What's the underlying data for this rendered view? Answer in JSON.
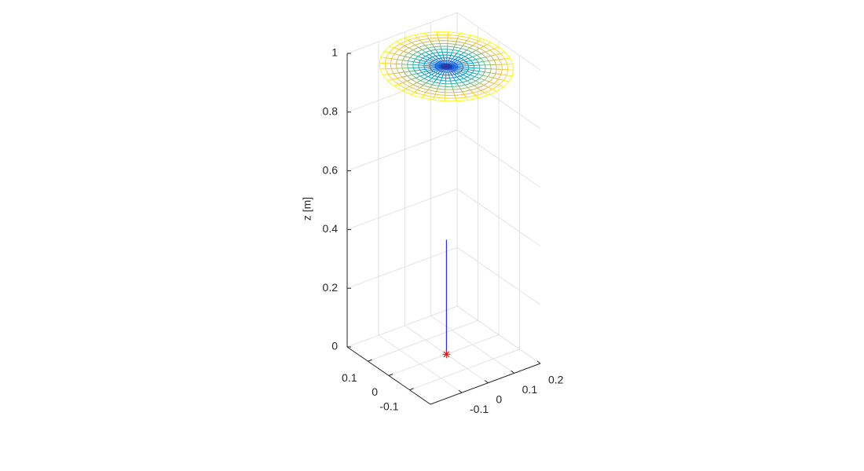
{
  "chart_data": {
    "type": "surface3d",
    "zlabel": "z [m]",
    "xlim": [
      -0.2,
      0.2
    ],
    "ylim": [
      -0.22,
      0.2
    ],
    "zlim": [
      0,
      1
    ],
    "xticks": [
      -0.1,
      0,
      0.1
    ],
    "yticks": [
      -0.1,
      0,
      0.1,
      0.2
    ],
    "zticks": [
      0,
      0.2,
      0.4,
      0.6,
      0.8,
      1
    ],
    "grid": true,
    "stem": {
      "x": 0,
      "y": 0,
      "z": [
        0,
        0.39
      ],
      "color": "#0000ff"
    },
    "marker": {
      "x": 0,
      "y": 0,
      "z": 0,
      "color": "#ff0000"
    },
    "surface": {
      "z": 0.98,
      "radius": 0.2,
      "rings": 12,
      "spokes": 36,
      "colormap": [
        "#352a87",
        "#0f5cdd",
        "#1481d6",
        "#06a4ca",
        "#2eb7a4",
        "#87bf77",
        "#d1bb59",
        "#fec832",
        "#f9fb0e"
      ]
    }
  }
}
